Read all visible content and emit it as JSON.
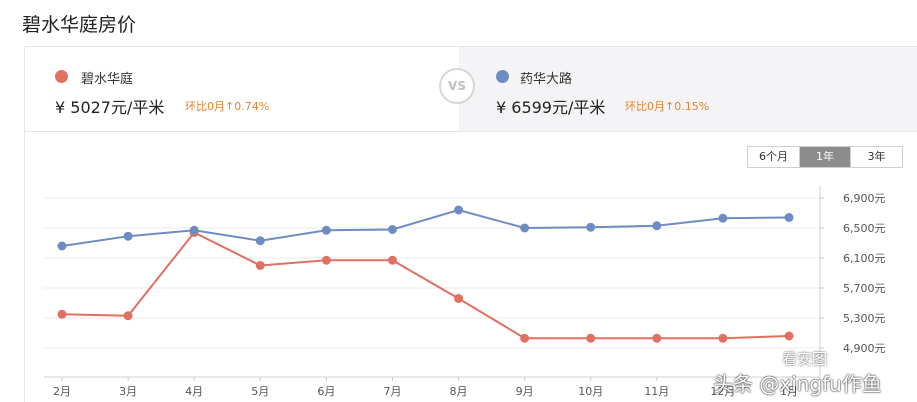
{
  "page": {
    "title": "碧水华庭房价"
  },
  "compare": {
    "left": {
      "name": "碧水华庭",
      "price": "¥ 5027元/平米",
      "change": "环比0月↑0.74%",
      "color": "#e07060"
    },
    "vs_label": "VS",
    "right": {
      "name": "药华大路",
      "price": "¥ 6599元/平米",
      "change": "环比0月↑0.15%",
      "color": "#6f8cc2"
    }
  },
  "range_buttons": [
    {
      "label": "6个月",
      "active": false
    },
    {
      "label": "1年",
      "active": true
    },
    {
      "label": "3年",
      "active": false
    }
  ],
  "watermark": {
    "text": "头条 @xingfu作鱼",
    "badge": "看安图"
  },
  "chart_data": {
    "type": "line",
    "categories": [
      "2月",
      "3月",
      "4月",
      "5月",
      "6月",
      "7月",
      "8月",
      "9月",
      "10月",
      "11月",
      "12月",
      "1月"
    ],
    "series": [
      {
        "name": "碧水华庭",
        "color": "#e07060",
        "values": [
          5350,
          5330,
          6440,
          6000,
          6070,
          6070,
          5560,
          5030,
          5030,
          5030,
          5030,
          5060
        ]
      },
      {
        "name": "药华大路",
        "color": "#6f8cc2",
        "values": [
          6260,
          6390,
          6470,
          6330,
          6470,
          6480,
          6740,
          6500,
          6510,
          6530,
          6630,
          6640
        ]
      }
    ],
    "y_ticks": [
      "6,900元",
      "6,500元",
      "6,100元",
      "5,700元",
      "5,300元",
      "4,900元"
    ],
    "y_tick_values": [
      6900,
      6500,
      6100,
      5700,
      5300,
      4900
    ],
    "ylim": [
      4900,
      6900
    ],
    "grid": true
  }
}
